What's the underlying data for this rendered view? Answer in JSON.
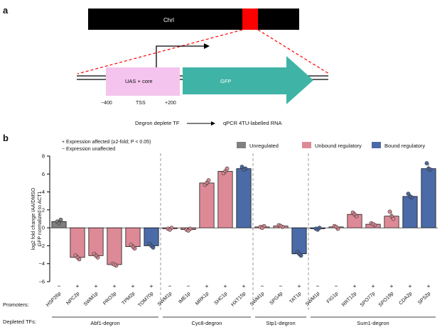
{
  "panel_a": {
    "label": "a",
    "chromosome_label": "ChrI",
    "construct_uas": "UAS + core",
    "construct_gfp": "GFP",
    "tss": "TSS",
    "pos_left": "−400",
    "pos_right": "+200",
    "flow_left": "Degron deplete TF",
    "flow_right": "qPCR 4TU-labelled RNA"
  },
  "panel_b": {
    "label": "b",
    "note_plus": "+ Expression affected (≥2-fold; P < 0.05)",
    "note_minus": "− Expression unaffected",
    "promoters_label": "Promoters:",
    "depleted_label": "Depleted TFs:",
    "groups": [
      "Abf1-degron",
      "Cyc8-degron",
      "Stp1-degron",
      "Sum1-degron"
    ]
  },
  "colors": {
    "Unregulated": "#808080",
    "Unbound regulatory": "#dd8a96",
    "Bound regulatory": "#4b6aa8",
    "highlight": "#ff0000",
    "gfp": "#3fb4a6",
    "uas": "#f4c4ee"
  },
  "chart_data": {
    "type": "bar",
    "ylabel_line1": "log2 fold change IAA/DMSO",
    "ylabel_line2": "GFP normalized to ACT1",
    "ylim": [
      -6,
      8
    ],
    "yticks": [
      -6,
      -4,
      -2,
      0,
      2,
      4,
      6,
      8
    ],
    "legend_position": "top-right",
    "legend": [
      "Unregulated",
      "Unbound regulatory",
      "Bound regulatory"
    ],
    "categories": [
      "HSP26p",
      "NPC2p",
      "SWM1p",
      "PRO3p",
      "TPM2p",
      "TOM70p",
      "SWM1p",
      "IME1p",
      "MRK1p",
      "SHC1p",
      "HXT15p",
      "SWM1p",
      "SPG4p",
      "TAT1p",
      "SWM1p",
      "FIG1p",
      "RRT12p",
      "SPO77p",
      "SPO19p",
      "CDA2p",
      "SPS2p"
    ],
    "values": [
      0.7,
      -3.3,
      -3.1,
      -4.1,
      -2.1,
      -2.0,
      -0.1,
      -0.2,
      5.0,
      6.3,
      6.6,
      0.1,
      0.2,
      -2.9,
      -0.1,
      0.1,
      1.5,
      0.4,
      1.3,
      3.5,
      6.6
    ],
    "classes": [
      "Unregulated",
      "Unbound regulatory",
      "Unbound regulatory",
      "Unbound regulatory",
      "Unbound regulatory",
      "Bound regulatory",
      "Unbound regulatory",
      "Unbound regulatory",
      "Unbound regulatory",
      "Unbound regulatory",
      "Bound regulatory",
      "Unbound regulatory",
      "Unbound regulatory",
      "Bound regulatory",
      "Bound regulatory",
      "Unbound regulatory",
      "Unbound regulatory",
      "Unbound regulatory",
      "Unbound regulatory",
      "Bound regulatory",
      "Bound regulatory"
    ],
    "significance": [
      "−",
      "+",
      "+",
      "+",
      "+",
      "+",
      "−",
      "−",
      "+",
      "+",
      "+",
      "−",
      "−",
      "+",
      "−",
      "−",
      "+",
      "+",
      "+",
      "+",
      "+"
    ],
    "replicates": [
      [
        0.7,
        0.9,
        0.5
      ],
      [
        -3.1,
        -3.5,
        -3.3
      ],
      [
        -2.9,
        -3.3,
        -3.1
      ],
      [
        -4.0,
        -4.2,
        -4.1
      ],
      [
        -1.9,
        -2.3,
        -2.1
      ],
      [
        -1.8,
        -2.2,
        -2.0
      ],
      [
        -0.1,
        0.0,
        -0.2
      ],
      [
        -0.2,
        -0.1,
        -0.3
      ],
      [
        4.8,
        5.3,
        5.0
      ],
      [
        6.1,
        6.6,
        6.3
      ],
      [
        6.8,
        6.6,
        6.5
      ],
      [
        0.1,
        0.2,
        0.0
      ],
      [
        0.3,
        0.1,
        0.2
      ],
      [
        -2.7,
        -3.1,
        -2.9
      ],
      [
        -0.1,
        0.0,
        -0.2
      ],
      [
        0.2,
        -0.1,
        0.1
      ],
      [
        1.7,
        1.3,
        1.5
      ],
      [
        0.5,
        0.3,
        0.4
      ],
      [
        1.8,
        1.0,
        1.3
      ],
      [
        3.8,
        3.4,
        3.5
      ],
      [
        7.2,
        6.5,
        6.6
      ]
    ],
    "group_spans": [
      [
        0,
        5
      ],
      [
        6,
        10
      ],
      [
        11,
        13
      ],
      [
        14,
        20
      ]
    ]
  }
}
